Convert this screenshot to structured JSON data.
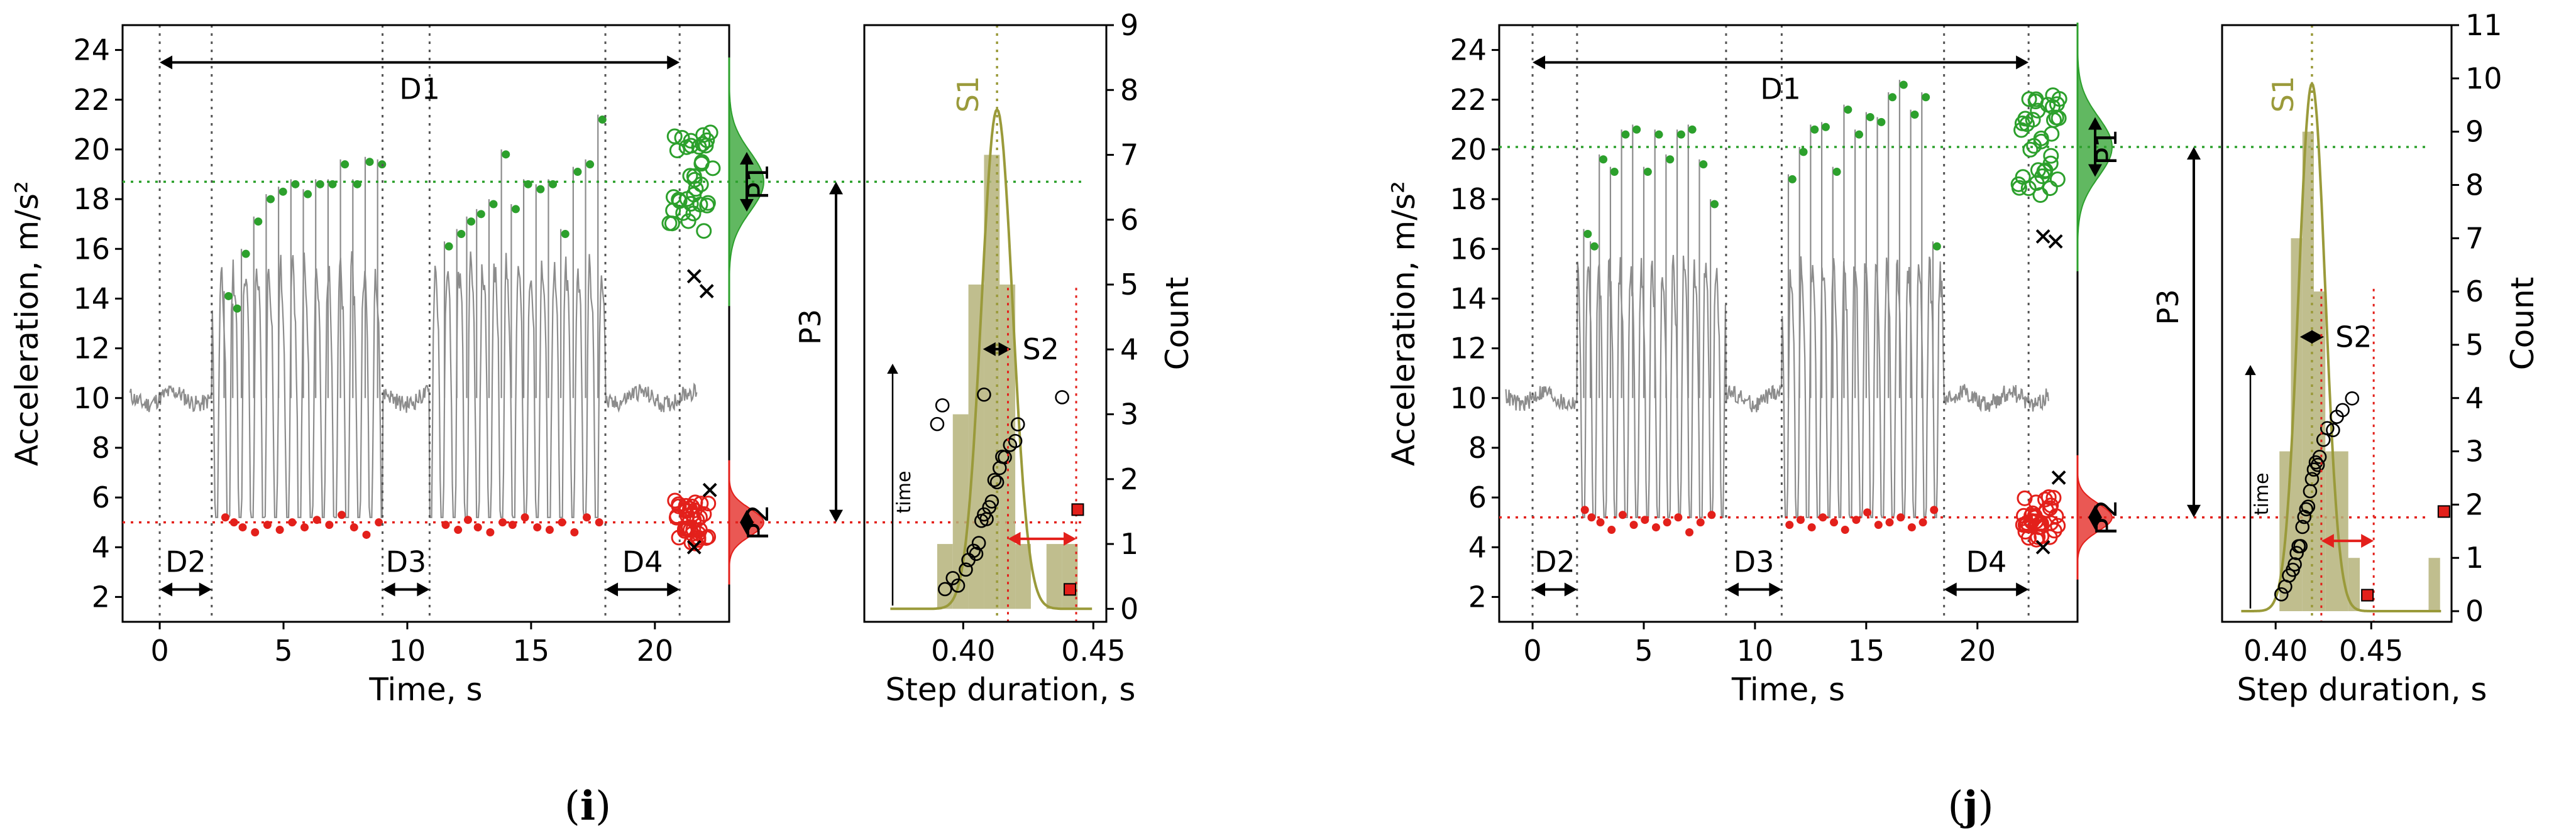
{
  "panels": [
    {
      "id": "i",
      "caption_open": "(",
      "caption_letter": "i",
      "caption_close": ")",
      "labels": {
        "D1": "D1",
        "D2": "D2",
        "D3": "D3",
        "D4": "D4",
        "P1": "P1",
        "P2": "P2",
        "P3": "P3",
        "S1": "S1",
        "S2": "S2",
        "time": "time"
      }
    },
    {
      "id": "j",
      "caption_open": "(",
      "caption_letter": "j",
      "caption_close": ")",
      "labels": {
        "D1": "D1",
        "D2": "D2",
        "D3": "D3",
        "D4": "D4",
        "P1": "P1",
        "P2": "P2",
        "P3": "P3",
        "S1": "S1",
        "S2": "S2",
        "time": "time"
      }
    }
  ],
  "colors": {
    "signal": "#8c8c8c",
    "peak": "#2ca02c",
    "valley": "#e3201b",
    "olive": "#9a9a3a",
    "olive_fill": "#b5b37a",
    "black": "#000000"
  },
  "chart_data": [
    {
      "type": "line",
      "panel": "i",
      "title": "",
      "xlabel": "Time, s",
      "ylabel": "Acceleration, m/s²",
      "xlim": [
        -1.5,
        23
      ],
      "ylim": [
        1,
        25
      ],
      "xticks": [
        0,
        5,
        10,
        15,
        20
      ],
      "yticks": [
        2,
        4,
        6,
        8,
        10,
        12,
        14,
        16,
        18,
        20,
        22,
        24
      ],
      "walking_bouts": [
        [
          2.1,
          9.0
        ],
        [
          10.9,
          18.0
        ]
      ],
      "peak_times_bout1": [
        2.6,
        2.95,
        3.3,
        3.8,
        4.3,
        4.8,
        5.3,
        5.8,
        6.3,
        6.8,
        7.3,
        7.8,
        8.3,
        8.8
      ],
      "peak_values_bout1": [
        14.5,
        14.0,
        16.2,
        17.5,
        18.4,
        18.7,
        19.0,
        18.6,
        19.0,
        19.0,
        19.8,
        19.0,
        19.9,
        19.8
      ],
      "peak_times_bout2": [
        11.5,
        12.0,
        12.4,
        12.8,
        13.3,
        13.8,
        14.2,
        14.7,
        15.2,
        15.7,
        16.2,
        16.7,
        17.2,
        17.7
      ],
      "peak_values_bout2": [
        16.5,
        17.0,
        17.5,
        17.8,
        18.2,
        20.2,
        18.0,
        19.0,
        18.8,
        19.0,
        17.0,
        19.5,
        19.8,
        21.6
      ],
      "valley_values": [
        5.2,
        5.0,
        4.8,
        4.6,
        4.9,
        4.7,
        5.0,
        4.8,
        5.1,
        4.9,
        5.3,
        4.8,
        4.5,
        5.0,
        4.9,
        4.7,
        5.1,
        4.8,
        4.6,
        5.0,
        4.9,
        5.2,
        4.8,
        4.7,
        5.0,
        4.6
      ],
      "mean_peak": 18.7,
      "mean_valley": 5.0,
      "D1": [
        0,
        21.0
      ],
      "D2": [
        0,
        2.1
      ],
      "D3": [
        9.0,
        10.9
      ],
      "D4": [
        18.0,
        21.0
      ],
      "outliers_peak": [
        14.9,
        14.3
      ],
      "outliers_valley": [
        6.3,
        4.0
      ]
    },
    {
      "type": "bar",
      "panel": "i",
      "xlabel": "Step duration, s",
      "ylabel": "Count",
      "xlim": [
        0.362,
        0.455
      ],
      "ylim": [
        -0.2,
        9
      ],
      "xticks": [
        0.4,
        0.45
      ],
      "yticks": [
        0,
        1,
        2,
        3,
        4,
        5,
        6,
        7,
        8,
        9
      ],
      "bin_edges": [
        0.39,
        0.396,
        0.402,
        0.408,
        0.414,
        0.42,
        0.426,
        0.432,
        0.438,
        0.444
      ],
      "counts": [
        1,
        3,
        5,
        7,
        5,
        1,
        0,
        1,
        1
      ],
      "S1_mean": 0.413,
      "S2_std": 0.006,
      "step_durations": [
        0.393,
        0.396,
        0.398,
        0.401,
        0.402,
        0.404,
        0.405,
        0.406,
        0.407,
        0.408,
        0.409,
        0.41,
        0.411,
        0.412,
        0.413,
        0.414,
        0.415,
        0.416,
        0.418,
        0.42,
        0.421,
        0.39,
        0.392,
        0.408,
        0.438
      ],
      "outlier_durations": [
        0.441,
        0.444
      ]
    },
    {
      "type": "line",
      "panel": "j",
      "title": "",
      "xlabel": "Time, s",
      "ylabel": "Acceleration, m/s²",
      "xlim": [
        -1.5,
        24.5
      ],
      "ylim": [
        1,
        25
      ],
      "xticks": [
        0,
        5,
        10,
        15,
        20
      ],
      "yticks": [
        2,
        4,
        6,
        8,
        10,
        12,
        14,
        16,
        18,
        20,
        22,
        24
      ],
      "walking_bouts": [
        [
          2.0,
          8.7
        ],
        [
          11.2,
          18.5
        ]
      ],
      "peak_times_bout1": [
        2.3,
        2.6,
        3.0,
        3.5,
        4.0,
        4.5,
        5.0,
        5.5,
        6.0,
        6.5,
        7.0,
        7.5,
        8.0
      ],
      "peak_values_bout1": [
        17.0,
        16.5,
        20.0,
        19.5,
        21.0,
        21.2,
        19.5,
        21.0,
        20.0,
        21.0,
        21.2,
        19.8,
        18.2
      ],
      "peak_times_bout2": [
        11.5,
        12.0,
        12.5,
        13.0,
        13.5,
        14.0,
        14.5,
        15.0,
        15.5,
        16.0,
        16.5,
        17.0,
        17.5,
        18.0
      ],
      "peak_values_bout2": [
        19.2,
        20.3,
        21.2,
        21.3,
        19.5,
        22.0,
        21.0,
        21.7,
        21.5,
        22.5,
        23.0,
        21.8,
        22.5,
        16.5
      ],
      "valley_values": [
        5.5,
        5.2,
        5.0,
        4.7,
        5.3,
        4.9,
        5.1,
        4.8,
        5.0,
        5.2,
        4.6,
        5.0,
        5.3,
        4.9,
        5.1,
        4.8,
        5.2,
        5.0,
        4.7,
        5.1,
        5.4,
        4.9,
        5.0,
        5.2,
        4.8,
        5.0
      ],
      "mean_peak": 20.1,
      "mean_valley": 5.2,
      "D1": [
        0,
        22.3
      ],
      "D2": [
        0,
        2.0
      ],
      "D3": [
        8.7,
        11.2
      ],
      "D4": [
        18.5,
        22.3
      ],
      "outliers_peak": [
        16.5,
        16.3
      ],
      "outliers_valley": [
        6.8,
        4.0
      ]
    },
    {
      "type": "bar",
      "panel": "j",
      "xlabel": "Step duration, s",
      "ylabel": "Count",
      "xlim": [
        0.372,
        0.492
      ],
      "ylim": [
        -0.2,
        11
      ],
      "xticks": [
        0.4,
        0.45
      ],
      "yticks": [
        0,
        1,
        2,
        3,
        4,
        5,
        6,
        7,
        8,
        9,
        10,
        11
      ],
      "bin_edges": [
        0.402,
        0.408,
        0.414,
        0.42,
        0.426,
        0.432,
        0.438,
        0.444,
        0.45,
        0.456,
        0.462,
        0.468,
        0.474,
        0.48,
        0.486
      ],
      "counts": [
        3,
        7,
        9,
        6,
        3,
        3,
        1,
        0,
        0,
        0,
        0,
        0,
        0,
        1
      ],
      "S1_mean": 0.419,
      "S2_std": 0.007,
      "step_durations": [
        0.403,
        0.405,
        0.407,
        0.409,
        0.41,
        0.411,
        0.412,
        0.413,
        0.414,
        0.415,
        0.416,
        0.417,
        0.418,
        0.419,
        0.42,
        0.421,
        0.422,
        0.423,
        0.425,
        0.427,
        0.43,
        0.432,
        0.435,
        0.44
      ],
      "outlier_durations": [
        0.448,
        0.488
      ]
    }
  ]
}
